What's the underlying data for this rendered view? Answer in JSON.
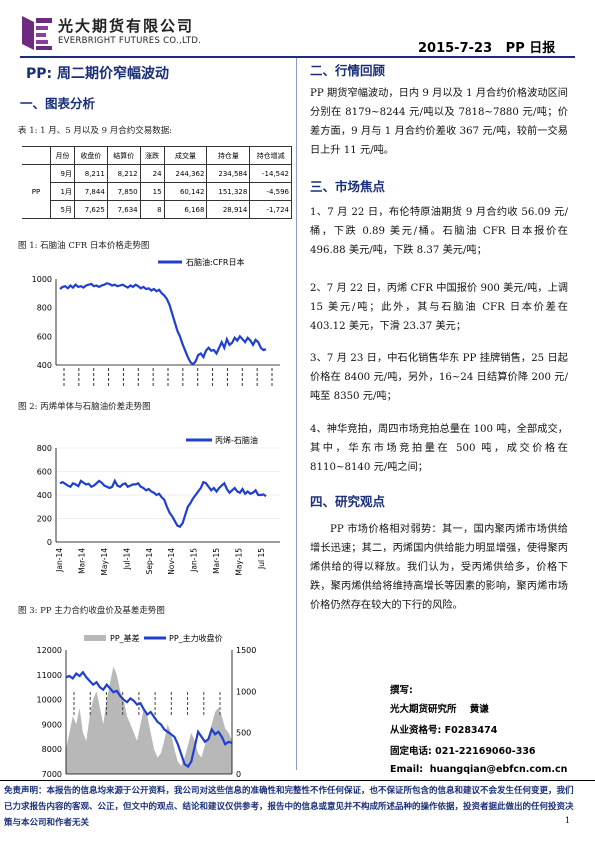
{
  "header": {
    "company_cn": "光大期货有限公司",
    "company_en": "EVERBRIGHT FUTURES CO.,LTD.",
    "date_tag": "2015-7-23   PP 日报"
  },
  "title": "PP:  周二期价窄幅波动",
  "sections": {
    "chart_analysis": "一、图表分析",
    "market_review": "二、行情回顾",
    "market_focus": "三、市场焦点",
    "research_view": "四、研究观点"
  },
  "table": {
    "caption": "表 1:  1 月、5 月以及 9 月合约交易数据:",
    "headers": [
      "月份",
      "收盘价",
      "结算价",
      "涨跌",
      "成交量",
      "持仓量",
      "持仓增减"
    ],
    "product": "PP",
    "rows": [
      [
        "9月",
        "8,211",
        "8,212",
        "24",
        "244,362",
        "234,584",
        "-14,542"
      ],
      [
        "1月",
        "7,844",
        "7,850",
        "15",
        "60,142",
        "151,328",
        "-4,596"
      ],
      [
        "5月",
        "7,625",
        "7,634",
        "8",
        "6,168",
        "28,914",
        "-1,724"
      ]
    ]
  },
  "captions": {
    "fig1": "图 1:  石脑油 CFR 日本价格走势图",
    "fig2": "图 2:  丙烯单体与石脑油价差走势图",
    "fig3": "图 3:  PP 主力合约收盘价及基差走势图"
  },
  "chart_data": [
    {
      "type": "line",
      "legend": [
        "石脑油:CFR日本"
      ],
      "ylim": [
        400,
        1000
      ],
      "yticks": [
        "1000",
        "800",
        "600",
        "400"
      ],
      "x_tick_labels": "rotated vertical labels, illegible",
      "series": [
        {
          "name": "石脑油:CFR日本",
          "color": "#1f3fd0",
          "values": [
            930,
            945,
            950,
            935,
            955,
            940,
            960,
            945,
            950,
            940,
            955,
            960,
            965,
            950,
            955,
            945,
            955,
            960,
            970,
            965,
            955,
            960,
            950,
            955,
            960,
            950,
            940,
            955,
            945,
            960,
            950,
            935,
            945,
            930,
            935,
            920,
            930,
            915,
            925,
            900,
            885,
            860,
            820,
            760,
            700,
            640,
            600,
            545,
            500,
            455,
            420,
            405,
            425,
            470,
            480,
            455,
            500,
            520,
            500,
            505,
            480,
            520,
            560,
            520,
            580,
            540,
            555,
            590,
            570,
            600,
            580,
            560,
            590,
            570,
            540,
            575,
            560,
            520,
            505,
            510
          ]
        }
      ]
    },
    {
      "type": "line",
      "legend": [
        "丙烯-石脑油"
      ],
      "ylim": [
        0,
        800
      ],
      "yticks": [
        "800",
        "600",
        "400",
        "200",
        "0"
      ],
      "x_tick_labels": [
        "Jan-14",
        "Mar-14",
        "May-14",
        "Jul-14",
        "Sep-14",
        "Nov-14",
        "Jan-15",
        "Mar-15",
        "May-15",
        "Jul 15"
      ],
      "series": [
        {
          "name": "丙烯-石脑油",
          "color": "#1f3fd0",
          "values": [
            500,
            510,
            495,
            480,
            470,
            500,
            490,
            475,
            520,
            505,
            490,
            495,
            470,
            480,
            500,
            520,
            505,
            480,
            470,
            460,
            470,
            520,
            480,
            470,
            490,
            500,
            470,
            480,
            490,
            490,
            500,
            470,
            460,
            440,
            450,
            430,
            420,
            400,
            410,
            380,
            360,
            300,
            250,
            220,
            180,
            140,
            130,
            160,
            230,
            300,
            330,
            370,
            400,
            430,
            460,
            510,
            500,
            470,
            440,
            460,
            430,
            460,
            480,
            500,
            450,
            420,
            440,
            460,
            430,
            420,
            450,
            410,
            430,
            410,
            420,
            440,
            400,
            400,
            405,
            390
          ]
        }
      ]
    },
    {
      "type": "line",
      "legend": [
        "PP_基差",
        "PP_主力收盘价"
      ],
      "ylim_left": [
        7000,
        12000
      ],
      "ylim_right": [
        0,
        1500
      ],
      "yticks_left": [
        "12000",
        "11000",
        "10000",
        "9000",
        "8000",
        "7000"
      ],
      "yticks_right": [
        "1500",
        "1000",
        "500",
        "0"
      ],
      "series": [
        {
          "name": "PP_基差",
          "type": "area",
          "axis": "right",
          "color": "#b8b8b8",
          "values": [
            300,
            500,
            700,
            600,
            800,
            500,
            400,
            700,
            900,
            1000,
            800,
            600,
            900,
            1100,
            1300,
            1200,
            1000,
            900,
            700,
            600,
            500,
            400,
            600,
            800,
            700,
            500,
            300,
            200,
            250,
            400,
            600,
            500,
            300,
            150,
            100,
            200,
            350,
            500,
            400,
            250,
            200,
            350,
            450,
            600,
            750,
            800,
            700,
            550,
            500,
            400
          ]
        },
        {
          "name": "PP_主力收盘价",
          "type": "line",
          "axis": "left",
          "color": "#1f3fd0",
          "values": [
            10900,
            10950,
            10850,
            11050,
            10950,
            11100,
            10900,
            10750,
            10600,
            10700,
            10500,
            10400,
            10600,
            10450,
            10300,
            10350,
            10150,
            10000,
            9900,
            10050,
            9950,
            9800,
            9850,
            9600,
            9400,
            9500,
            9300,
            9100,
            9000,
            8800,
            8700,
            8600,
            8500,
            8200,
            7800,
            7400,
            7300,
            7500,
            8100,
            8700,
            8500,
            8300,
            8400,
            8800,
            8600,
            8700,
            8500,
            8200,
            8300,
            8250
          ]
        }
      ]
    }
  ],
  "market_review": {
    "para": "PP 期货窄幅波动，日内 9 月以及 1 月合约价格波动区间分别在 8179~8244 元/吨以及 7818~7880 元/吨；价差方面，9 月与 1 月合约价差收 367 元/吨，较前一交易日上升 11 元/吨。"
  },
  "market_focus": [
    "1、7 月 22 日，布伦特原油期货 9 月合约收 56.09 元/桶，下跌 0.89 美元/桶。石脑油 CFR 日本报价在 496.88 美元/吨，下跌 8.37 美元/吨；",
    "2、7 月 22 日，丙烯 CFR 中国报价 900 美元/吨，上调 15 美元/吨；此外，其与石脑油 CFR 日本价差在 403.12 美元，下滑 23.37 美元；",
    "3、7 月 23 日，中石化销售华东 PP 挂牌销售，25 日起价格在 8400 元/吨，另外，16~24 日结算价降 200 元/吨至 8350 元/吨；",
    "4、神华竞拍，周四市场竞拍总量在 100 吨，全部成交，其中，华东市场竞拍量在 500 吨，成交价格在 8110~8140 元/吨之间；"
  ],
  "research_view": {
    "para": "PP 市场价格相对弱势：其一，国内聚丙烯市场供给增长迅速；其二，丙烯国内供给能力明显增强，使得聚丙烯供给的得以释放。我们认为，受丙烯供给多，价格下跌，聚丙烯供给将维持高增长等因素的影响，聚丙烯市场价格仍然存在较大的下行的风险。"
  },
  "contact": {
    "heading": "撰写:",
    "author": "光大期货研究所    黄谦",
    "license": "从业资格号: F0283474",
    "phone": "固定电话: 021-22169060-336",
    "email": "Email:  huangqian@ebfcn.com.cn"
  },
  "disclaimer": "免责声明：本报告的信息均来源于公开资料，我公司对这些信息的准确性和完整性不作任何保证，也不保证所包含的信息和建议不会发生任何变更，我们已力求报告内容的客观、公正，但文中的观点、结论和建议仅供参考，报告中的信息或意见并不构成所述品种的操作依据，投资者据此做出的任何投资决策与本公司和作者无关",
  "page_number": "1"
}
